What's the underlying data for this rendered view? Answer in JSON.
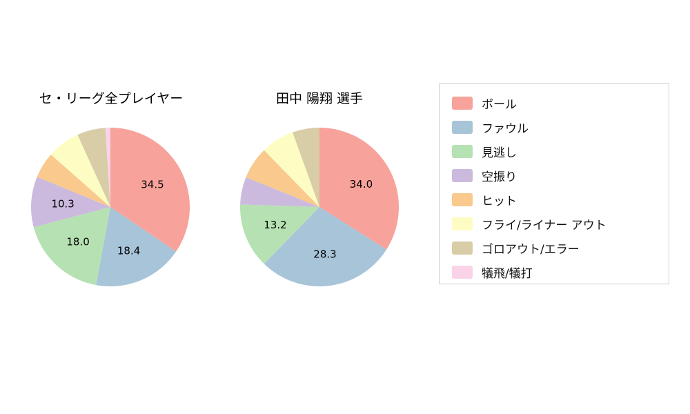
{
  "page": {
    "background": "#ffffff"
  },
  "chart_data": [
    {
      "type": "pie",
      "title": "セ・リーグ全プレイヤー",
      "categories": [
        "ボール",
        "ファウル",
        "見逃し",
        "空振り",
        "ヒット",
        "フライ/ライナー アウト",
        "ゴロアウト/エラー",
        "犠飛/犠打"
      ],
      "values": [
        34.5,
        18.4,
        18.0,
        10.3,
        5.3,
        6.7,
        5.8,
        1.0
      ],
      "visible_value_labels": [
        "34.5",
        "18.4",
        "18.0",
        "10.3"
      ],
      "start_angle_deg_from_top": 0,
      "direction": "clockwise",
      "label_threshold": 10,
      "legend_position": "right"
    },
    {
      "type": "pie",
      "title": "田中 陽翔  選手",
      "categories": [
        "ボール",
        "ファウル",
        "見逃し",
        "空振り",
        "ヒット",
        "フライ/ライナー アウト",
        "ゴロアウト/エラー",
        "犠飛/犠打"
      ],
      "values": [
        34.0,
        28.3,
        13.2,
        5.6,
        6.6,
        6.8,
        5.5,
        0.0
      ],
      "visible_value_labels": [
        "34.0",
        "28.3",
        "13.2"
      ],
      "start_angle_deg_from_top": 0,
      "direction": "clockwise",
      "label_threshold": 10,
      "legend_position": "right"
    }
  ],
  "legend": {
    "position": "right",
    "items": [
      {
        "label": "ボール",
        "color": "#f7a29b"
      },
      {
        "label": "ファウル",
        "color": "#a8c4d9"
      },
      {
        "label": "見逃し",
        "color": "#b6e1b2"
      },
      {
        "label": "空振り",
        "color": "#ccbade"
      },
      {
        "label": "ヒット",
        "color": "#f9c98d"
      },
      {
        "label": "フライ/ライナー アウト",
        "color": "#fdfdc3"
      },
      {
        "label": "ゴロアウト/エラー",
        "color": "#d8cda7"
      },
      {
        "label": "犠飛/犠打",
        "color": "#fbd3e8"
      }
    ]
  }
}
